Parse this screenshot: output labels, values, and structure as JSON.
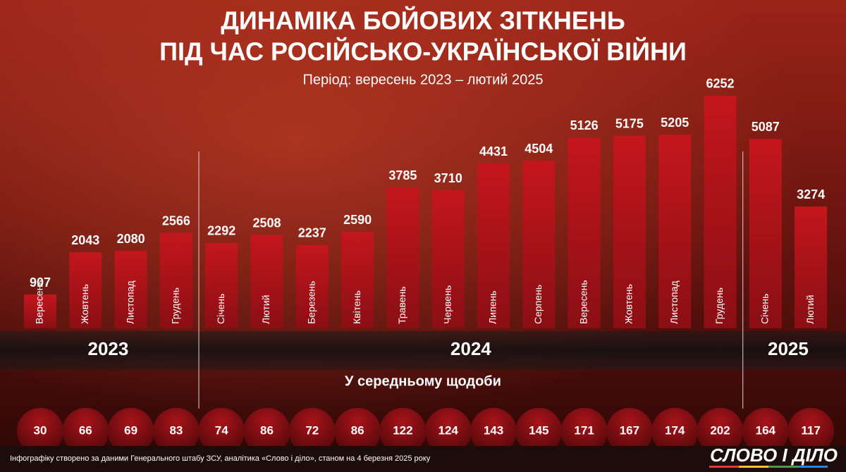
{
  "chart_data": {
    "type": "bar",
    "title": "ДИНАМІКА БОЙОВИХ ЗІТКНЕНЬ",
    "title_line2": "ПІД ЧАС РОСІЙСЬКО-УКРАЇНСЬКОЇ ВІЙНИ",
    "subtitle": "Період: вересень 2023 – лютий 2025",
    "color": "#b0141b",
    "groups": [
      {
        "label": "2023",
        "categories": [
          "Вересень",
          "Жовтень",
          "Листопад",
          "Грудень"
        ],
        "values": [
          907,
          2043,
          2080,
          2566
        ],
        "daily": [
          30,
          66,
          69,
          83
        ]
      },
      {
        "label": "2024",
        "categories": [
          "Січень",
          "Лютий",
          "Березень",
          "Квітень",
          "Травень",
          "Червень",
          "Липень",
          "Серпень",
          "Вересень",
          "Жовтень",
          "Листопад",
          "Грудень"
        ],
        "values": [
          2292,
          2508,
          2237,
          2590,
          3785,
          3710,
          4431,
          4504,
          5126,
          5175,
          5205,
          6252
        ],
        "daily": [
          74,
          86,
          72,
          86,
          122,
          124,
          143,
          145,
          171,
          167,
          174,
          202
        ]
      },
      {
        "label": "2025",
        "categories": [
          "Січень",
          "Лютий"
        ],
        "values": [
          5087,
          3274
        ],
        "daily": [
          164,
          117
        ]
      }
    ],
    "daily_title": "У середньому щодоби",
    "footer": "Інфографіку створено за даними Генерального штабу ЗСУ, аналітика «Слово і діло», станом на 4 березня 2025 року",
    "logo": "СЛОВО І ДІЛО"
  }
}
